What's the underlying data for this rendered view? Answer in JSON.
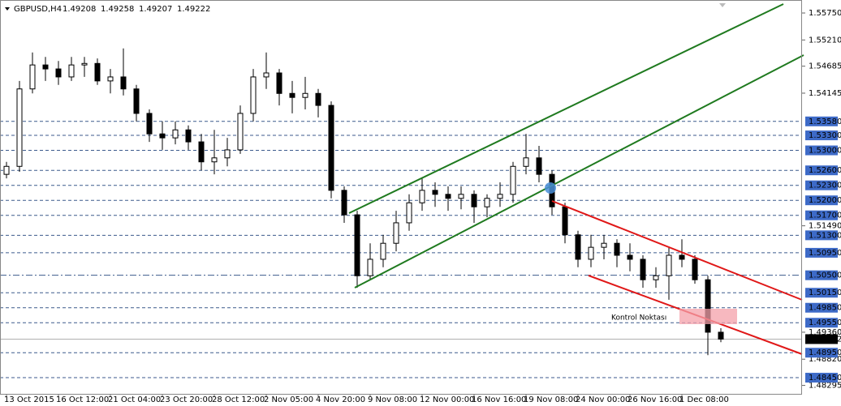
{
  "chart_data": {
    "type": "candlestick",
    "title": "GBPUSD,H4",
    "quote_values": [
      1.49208,
      1.49258,
      1.49207,
      1.49222
    ],
    "annotation": "Kontrol Noktası",
    "categories": [
      "13 Oct 2015",
      null,
      null,
      null,
      "16 Oct 12:00",
      null,
      null,
      null,
      "21 Oct 04:00",
      null,
      null,
      null,
      "23 Oct 20:00",
      null,
      null,
      null,
      "28 Oct 12:00",
      null,
      null,
      null,
      "2 Nov 05:00",
      null,
      null,
      null,
      "4 Nov 20:00",
      null,
      null,
      null,
      "9 Nov 08:00",
      null,
      null,
      null,
      "12 Nov 00:00",
      null,
      null,
      null,
      "16 Nov 16:00",
      null,
      null,
      null,
      "19 Nov 08:00",
      null,
      null,
      null,
      "24 Nov 00:00",
      null,
      null,
      null,
      "26 Nov 16:00",
      null,
      null,
      null,
      "1 Dec 08:00",
      null,
      null,
      null
    ],
    "open": [
      1.5252,
      1.5268,
      1.5423,
      1.5471,
      1.5463,
      1.5447,
      1.5471,
      1.5474,
      1.5439,
      1.5447,
      1.5423,
      1.5374,
      1.5333,
      1.5325,
      1.5341,
      1.5317,
      1.5277,
      1.5285,
      1.5301,
      1.5374,
      1.5447,
      1.5455,
      1.5414,
      1.5406,
      1.5414,
      1.539,
      1.522,
      1.5171,
      1.5049,
      1.5082,
      1.5114,
      1.5155,
      1.5195,
      1.522,
      1.5212,
      1.5204,
      1.5212,
      1.5187,
      1.5204,
      1.5212,
      1.5268,
      1.5285,
      1.5252,
      1.5187,
      1.5131,
      1.5082,
      1.5106,
      1.5114,
      1.509,
      1.5082,
      1.5041,
      1.5049,
      1.509,
      1.5082,
      1.5041,
      1.4936
    ],
    "high": [
      1.5277,
      1.5439,
      1.5496,
      1.5487,
      1.5479,
      1.5487,
      1.5487,
      1.5484,
      1.5463,
      1.5504,
      1.5431,
      1.5382,
      1.5358,
      1.5358,
      1.535,
      1.5333,
      1.5341,
      1.5325,
      1.539,
      1.5463,
      1.5496,
      1.5463,
      1.5439,
      1.5447,
      1.5423,
      1.5398,
      1.5228,
      1.5179,
      1.5114,
      1.5131,
      1.5179,
      1.5212,
      1.5244,
      1.5236,
      1.5228,
      1.5228,
      1.522,
      1.5212,
      1.5236,
      1.5277,
      1.5333,
      1.5309,
      1.526,
      1.5195,
      1.5139,
      1.5131,
      1.5131,
      1.5122,
      1.5114,
      1.509,
      1.5066,
      1.5106,
      1.5122,
      1.509,
      1.5049,
      1.4944
    ],
    "low": [
      1.5244,
      1.5257,
      1.5414,
      1.5439,
      1.5431,
      1.5439,
      1.5447,
      1.5431,
      1.5414,
      1.541,
      1.5358,
      1.5317,
      1.5301,
      1.5312,
      1.5301,
      1.526,
      1.5252,
      1.5268,
      1.5293,
      1.5358,
      1.5423,
      1.539,
      1.5374,
      1.5382,
      1.5366,
      1.5204,
      1.5155,
      1.5025,
      1.5041,
      1.5066,
      1.5098,
      1.5139,
      1.5179,
      1.5187,
      1.5179,
      1.5182,
      1.5155,
      1.5166,
      1.5187,
      1.5195,
      1.5252,
      1.5236,
      1.5171,
      1.5114,
      1.5066,
      1.5066,
      1.5082,
      1.5066,
      1.5058,
      1.5025,
      1.5025,
      1.5001,
      1.5066,
      1.5033,
      1.489,
      1.4916
    ],
    "close": [
      1.5268,
      1.5423,
      1.5471,
      1.5463,
      1.5447,
      1.5471,
      1.5474,
      1.5439,
      1.5447,
      1.5423,
      1.5374,
      1.5333,
      1.5325,
      1.5341,
      1.5317,
      1.5277,
      1.5285,
      1.5301,
      1.5374,
      1.5447,
      1.5455,
      1.5414,
      1.5406,
      1.5414,
      1.539,
      1.522,
      1.5171,
      1.5049,
      1.5082,
      1.5114,
      1.5155,
      1.5195,
      1.522,
      1.5212,
      1.5204,
      1.5212,
      1.5187,
      1.5204,
      1.5212,
      1.5268,
      1.5285,
      1.5252,
      1.5187,
      1.5131,
      1.5082,
      1.5106,
      1.5114,
      1.509,
      1.5082,
      1.5041,
      1.5049,
      1.509,
      1.5082,
      1.5041,
      1.4936,
      1.49222
    ],
    "ylim": [
      1.4811,
      1.5601
    ],
    "yticks": [
      {
        "value": 1.5575,
        "label": "1.55750"
      },
      {
        "value": 1.5521,
        "label": "1.55210"
      },
      {
        "value": 1.54685,
        "label": "1.54685"
      },
      {
        "value": 1.54145,
        "label": "1.54145"
      },
      {
        "value": 1.5149,
        "label": "1.51490"
      },
      {
        "value": 1.4936,
        "label": "1.49360"
      },
      {
        "value": 1.4882,
        "label": "1.48820"
      },
      {
        "value": 1.48295,
        "label": "1.48295"
      }
    ],
    "levels": [
      {
        "value": 1.5358,
        "label": "1.53580"
      },
      {
        "value": 1.533,
        "label": "1.53300"
      },
      {
        "value": 1.53,
        "label": "1.53000"
      },
      {
        "value": 1.526,
        "label": "1.52600"
      },
      {
        "value": 1.523,
        "label": "1.52300"
      },
      {
        "value": 1.52,
        "label": "1.52000"
      },
      {
        "value": 1.517,
        "label": "1.51700"
      },
      {
        "value": 1.513,
        "label": "1.51300"
      },
      {
        "value": 1.5095,
        "label": "1.50950"
      },
      {
        "value": 1.505,
        "label": "1.50500",
        "line_style": "dashdot"
      },
      {
        "value": 1.5015,
        "label": "1.50150"
      },
      {
        "value": 1.4985,
        "label": "1.49850"
      },
      {
        "value": 1.4955,
        "label": "1.49550"
      },
      {
        "value": 1.4895,
        "label": "1.48950"
      },
      {
        "value": 1.4845,
        "label": "1.48450"
      }
    ],
    "current_price": 1.49222,
    "up_color": "#ffffff",
    "down_color": "#000000",
    "level_color": "#3d6ac7",
    "grid": false
  }
}
